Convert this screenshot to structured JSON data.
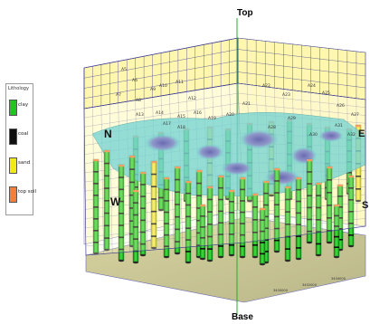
{
  "legend": {
    "title": "Lithology",
    "items": [
      {
        "label": "clay",
        "color": "#22c422"
      },
      {
        "label": "coal",
        "color": "#101010"
      },
      {
        "label": "sand",
        "color": "#f2ea16"
      },
      {
        "label": "top soil",
        "color": "#f0803c"
      }
    ]
  },
  "axes": {
    "top": "Top",
    "base": "Base"
  },
  "directions": {
    "north": "N",
    "west": "W",
    "east": "E",
    "south": "S"
  },
  "well_labels": [
    "A5",
    "A6",
    "A7",
    "A8",
    "A9",
    "A10",
    "A11",
    "A12",
    "A13",
    "A14",
    "A15",
    "A16",
    "A17",
    "A18",
    "A19",
    "A20",
    "A21",
    "A22",
    "A23",
    "A24",
    "A25",
    "A26",
    "A27",
    "A28",
    "A29",
    "A30",
    "A31",
    "A32"
  ],
  "scale_ticks": [
    "3400000",
    "3402000",
    "3404000"
  ],
  "colors": {
    "box_fill": "#fff8b0",
    "grid": "#3a3a90",
    "surface": "#49c7d4",
    "depression": "#4040b8"
  }
}
